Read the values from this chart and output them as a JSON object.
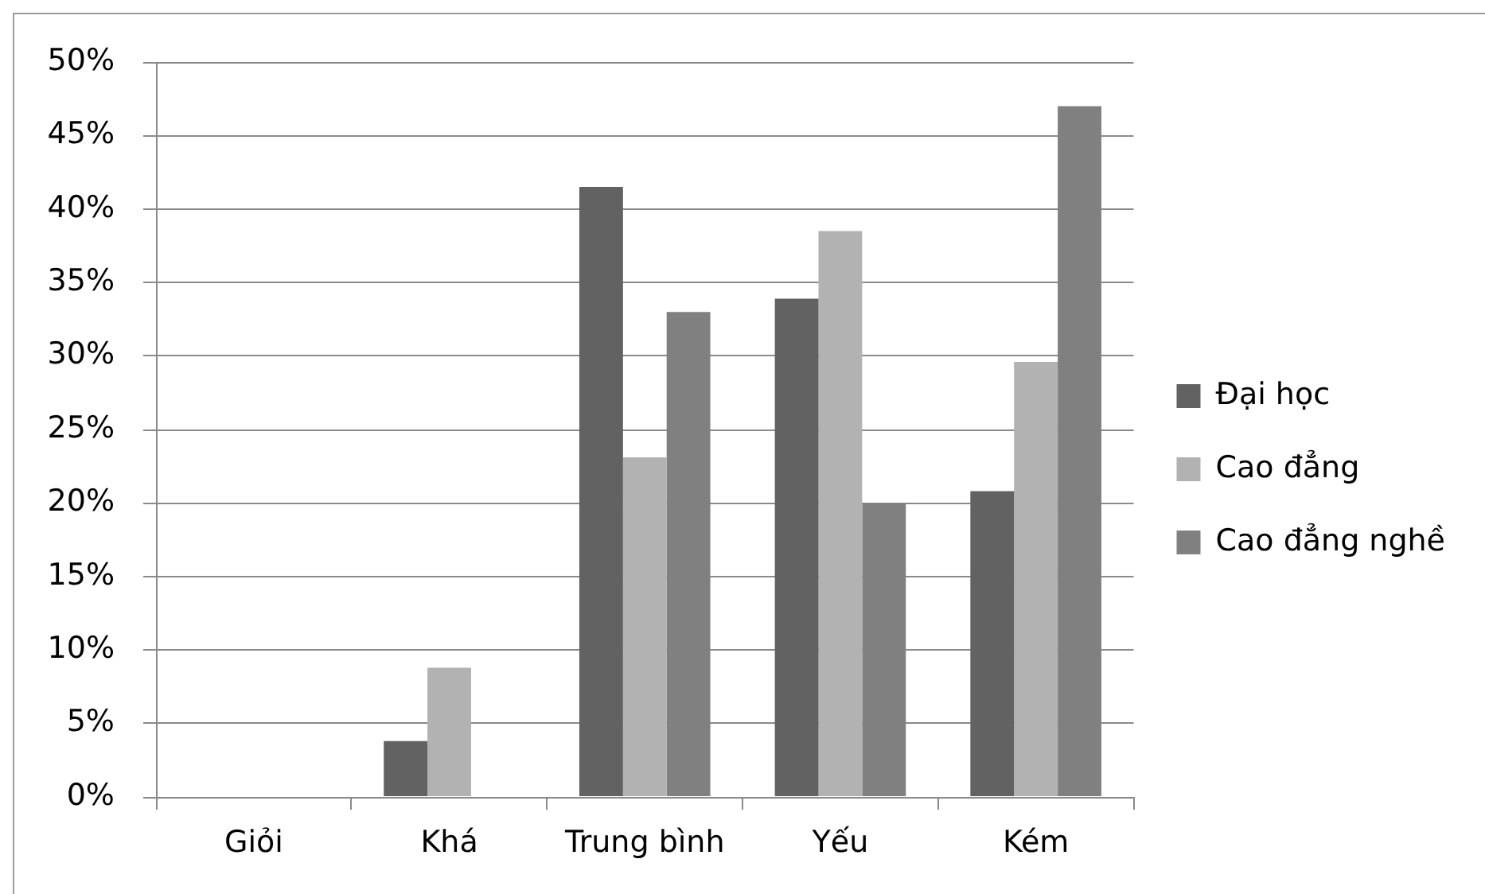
{
  "chart_data": {
    "type": "bar",
    "categories": [
      "Giỏi",
      "Khá",
      "Trung bình",
      "Yếu",
      "Kém"
    ],
    "series": [
      {
        "name": "Đại học",
        "color": "#626262",
        "values": [
          0,
          3.8,
          41.5,
          33.9,
          20.8
        ]
      },
      {
        "name": "Cao đẳng",
        "color": "#b2b2b2",
        "values": [
          0,
          8.8,
          23.1,
          38.5,
          29.6
        ]
      },
      {
        "name": "Cao đẳng nghề",
        "color": "#808080",
        "values": [
          0,
          0,
          33.0,
          20.0,
          47.0
        ]
      }
    ],
    "ylim": [
      0,
      50
    ],
    "yticks": [
      {
        "value": 0,
        "label": "0%"
      },
      {
        "value": 5,
        "label": "5%"
      },
      {
        "value": 10,
        "label": "10%"
      },
      {
        "value": 15,
        "label": "15%"
      },
      {
        "value": 20,
        "label": "20%"
      },
      {
        "value": 25,
        "label": "25%"
      },
      {
        "value": 30,
        "label": "30%"
      },
      {
        "value": 35,
        "label": "35%"
      },
      {
        "value": 40,
        "label": "40%"
      },
      {
        "value": 45,
        "label": "45%"
      },
      {
        "value": 50,
        "label": "50%"
      }
    ],
    "grid": "y",
    "legend": "right"
  }
}
